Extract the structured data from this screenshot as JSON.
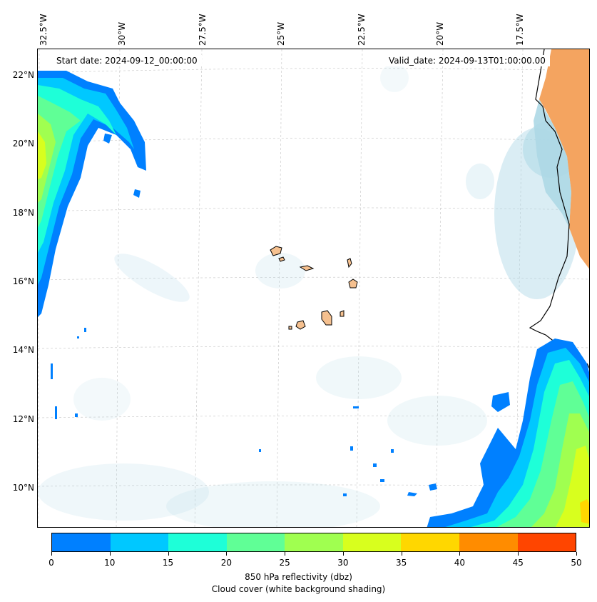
{
  "map": {
    "start_date": "Start date: 2024-09-12_00:00:00",
    "valid_date": "Valid_date: 2024-09-13T01:00:00.00",
    "lon_labels": [
      "32.5°W",
      "30°W",
      "27.5°W",
      "25°W",
      "22.5°W",
      "20°W",
      "17.5°W"
    ],
    "lat_labels": [
      "22°N",
      "20°N",
      "18°N",
      "16°N",
      "14°N",
      "12°N",
      "10°N"
    ],
    "colors": {
      "land_africa": "#f4a460",
      "islands": "#f5c08f",
      "cloud": "#add8e6",
      "coastline": "#000000"
    }
  },
  "colorbar": {
    "ticks": [
      "0",
      "10",
      "15",
      "20",
      "25",
      "30",
      "35",
      "40",
      "45",
      "50"
    ],
    "colors": [
      "#0080ff",
      "#00c8ff",
      "#1effd8",
      "#60ff96",
      "#a0ff50",
      "#d8ff1e",
      "#ffd700",
      "#ff8c00",
      "#ff4500"
    ],
    "label_line1": "850 hPa reflectivity (dbz)",
    "label_line2": "Cloud cover (white background shading)"
  }
}
